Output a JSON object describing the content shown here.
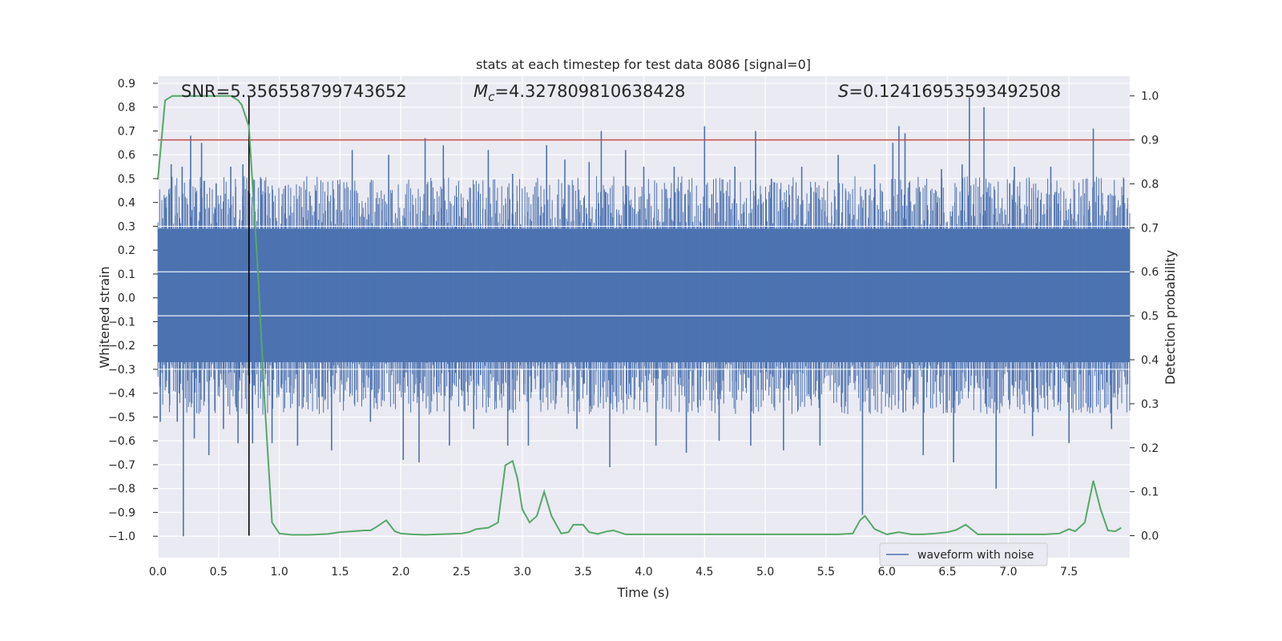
{
  "chart_data": {
    "type": "line",
    "title": "stats at each timestep for test data 8086 [signal=0]",
    "xlabel": "Time (s)",
    "ylabel_left": "Whitened strain",
    "ylabel_right": "Detection probability",
    "xlim": [
      0.0,
      8.0
    ],
    "ylim_left": [
      -1.09,
      0.93
    ],
    "ylim_right": [
      -0.05,
      1.045
    ],
    "x_ticks": [
      "0.0",
      "0.5",
      "1.0",
      "1.5",
      "2.0",
      "2.5",
      "3.0",
      "3.5",
      "4.0",
      "4.5",
      "5.0",
      "5.5",
      "6.0",
      "6.5",
      "7.0",
      "7.5"
    ],
    "y_ticks_left": [
      "0.9",
      "0.8",
      "0.7",
      "0.6",
      "0.5",
      "0.4",
      "0.3",
      "0.2",
      "0.1",
      "0.0",
      "−0.1",
      "−0.2",
      "−0.3",
      "−0.4",
      "−0.5",
      "−0.6",
      "−0.7",
      "−0.8",
      "−0.9",
      "−1.0"
    ],
    "y_ticks_right": [
      "1.0",
      "0.9",
      "0.8",
      "0.7",
      "0.6",
      "0.5",
      "0.4",
      "0.3",
      "0.2",
      "0.1",
      "0.0"
    ],
    "grid": true,
    "legend": {
      "location": "lower-right",
      "entries": [
        "waveform with noise"
      ]
    },
    "annotations": {
      "snr_label": "SNR=5.356558799743652",
      "mc_symbol": "M",
      "mc_sub": "c",
      "mc_value": "=4.327809810638428",
      "s_symbol": "S",
      "s_value": "=0.12416953593492508"
    },
    "threshold": 0.9,
    "marker_time": 0.75,
    "series": [
      {
        "name": "waveform with noise",
        "axis": "left",
        "color": "#4c72b0",
        "description_core_band": [
          -0.27,
          0.29
        ],
        "spikes": [
          [
            0.02,
            -0.52
          ],
          [
            0.06,
            0.42
          ],
          [
            0.11,
            0.56
          ],
          [
            0.16,
            -0.52
          ],
          [
            0.2,
            0.55
          ],
          [
            0.21,
            -1.0
          ],
          [
            0.27,
            0.68
          ],
          [
            0.3,
            -0.59
          ],
          [
            0.36,
            0.65
          ],
          [
            0.42,
            -0.66
          ],
          [
            0.48,
            0.48
          ],
          [
            0.54,
            -0.55
          ],
          [
            0.6,
            0.55
          ],
          [
            0.66,
            -0.61
          ],
          [
            0.7,
            0.56
          ],
          [
            0.78,
            -0.61
          ],
          [
            0.85,
            0.5
          ],
          [
            0.94,
            -0.61
          ],
          [
            1.05,
            0.47
          ],
          [
            1.15,
            -0.62
          ],
          [
            1.3,
            0.45
          ],
          [
            1.43,
            -0.64
          ],
          [
            1.6,
            0.62
          ],
          [
            1.75,
            -0.52
          ],
          [
            1.9,
            0.6
          ],
          [
            2.02,
            -0.68
          ],
          [
            2.15,
            -0.69
          ],
          [
            2.2,
            0.67
          ],
          [
            2.35,
            0.64
          ],
          [
            2.4,
            -0.62
          ],
          [
            2.6,
            -0.55
          ],
          [
            2.72,
            0.62
          ],
          [
            2.88,
            -0.62
          ],
          [
            2.92,
            0.52
          ],
          [
            3.05,
            -0.62
          ],
          [
            3.2,
            0.64
          ],
          [
            3.35,
            0.58
          ],
          [
            3.45,
            -0.55
          ],
          [
            3.55,
            0.57
          ],
          [
            3.65,
            0.7
          ],
          [
            3.72,
            -0.71
          ],
          [
            3.85,
            0.62
          ],
          [
            4.0,
            0.55
          ],
          [
            4.1,
            -0.62
          ],
          [
            4.25,
            0.55
          ],
          [
            4.35,
            -0.65
          ],
          [
            4.5,
            0.72
          ],
          [
            4.62,
            -0.6
          ],
          [
            4.75,
            0.55
          ],
          [
            4.88,
            -0.62
          ],
          [
            4.92,
            0.7
          ],
          [
            5.05,
            0.5
          ],
          [
            5.15,
            -0.64
          ],
          [
            5.3,
            0.55
          ],
          [
            5.45,
            -0.62
          ],
          [
            5.6,
            0.6
          ],
          [
            5.8,
            -0.91
          ],
          [
            5.9,
            0.56
          ],
          [
            6.05,
            0.65
          ],
          [
            6.1,
            0.72
          ],
          [
            6.15,
            0.69
          ],
          [
            6.3,
            -0.66
          ],
          [
            6.45,
            0.54
          ],
          [
            6.55,
            -0.69
          ],
          [
            6.62,
            0.56
          ],
          [
            6.68,
            0.84
          ],
          [
            6.8,
            0.8
          ],
          [
            6.9,
            -0.8
          ],
          [
            7.05,
            0.55
          ],
          [
            7.2,
            -0.58
          ],
          [
            7.35,
            0.55
          ],
          [
            7.5,
            -0.61
          ],
          [
            7.7,
            0.71
          ],
          [
            7.85,
            -0.55
          ],
          [
            7.95,
            0.5
          ]
        ]
      },
      {
        "name": "",
        "axis": "right",
        "color": "#55a868",
        "x": [
          0.0,
          0.06,
          0.12,
          0.18,
          0.24,
          0.3,
          0.36,
          0.42,
          0.48,
          0.54,
          0.6,
          0.66,
          0.69,
          0.75,
          0.82,
          0.88,
          0.94,
          1.0,
          1.1,
          1.25,
          1.4,
          1.5,
          1.6,
          1.7,
          1.75,
          1.8,
          1.88,
          1.95,
          2.0,
          2.1,
          2.2,
          2.3,
          2.4,
          2.5,
          2.56,
          2.62,
          2.72,
          2.8,
          2.86,
          2.92,
          2.96,
          3.0,
          3.06,
          3.12,
          3.18,
          3.24,
          3.32,
          3.38,
          3.42,
          3.5,
          3.55,
          3.62,
          3.7,
          3.75,
          3.85,
          4.0,
          4.2,
          4.4,
          4.6,
          4.8,
          5.0,
          5.2,
          5.4,
          5.6,
          5.72,
          5.78,
          5.82,
          5.9,
          6.0,
          6.1,
          6.2,
          6.3,
          6.4,
          6.5,
          6.57,
          6.65,
          6.75,
          6.9,
          7.1,
          7.3,
          7.42,
          7.5,
          7.55,
          7.63,
          7.7,
          7.76,
          7.82,
          7.88,
          7.93
        ],
        "y": [
          0.81,
          0.99,
          1.0,
          1.0,
          1.0,
          1.0,
          1.0,
          1.0,
          1.0,
          1.0,
          1.0,
          0.99,
          0.98,
          0.93,
          0.62,
          0.3,
          0.03,
          0.005,
          0.002,
          0.002,
          0.004,
          0.008,
          0.01,
          0.012,
          0.012,
          0.02,
          0.035,
          0.01,
          0.005,
          0.003,
          0.002,
          0.003,
          0.004,
          0.005,
          0.008,
          0.015,
          0.018,
          0.03,
          0.16,
          0.17,
          0.13,
          0.06,
          0.03,
          0.045,
          0.1,
          0.045,
          0.005,
          0.008,
          0.025,
          0.025,
          0.008,
          0.004,
          0.01,
          0.012,
          0.003,
          0.003,
          0.003,
          0.003,
          0.003,
          0.003,
          0.003,
          0.003,
          0.003,
          0.003,
          0.005,
          0.035,
          0.045,
          0.015,
          0.003,
          0.008,
          0.003,
          0.003,
          0.005,
          0.008,
          0.013,
          0.025,
          0.003,
          0.003,
          0.003,
          0.003,
          0.005,
          0.015,
          0.01,
          0.03,
          0.125,
          0.06,
          0.012,
          0.01,
          0.018
        ]
      }
    ]
  }
}
